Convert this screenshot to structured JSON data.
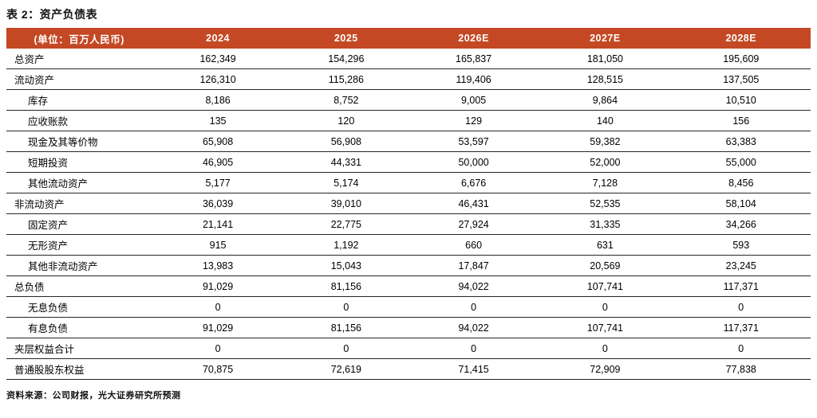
{
  "title": "表 2：资产负债表",
  "table": {
    "unit_label": "(单位：百万人民币)",
    "columns": [
      "2024",
      "2025",
      "2026E",
      "2027E",
      "2028E"
    ],
    "rows": [
      {
        "label": "总资产",
        "indent": 0,
        "values": [
          "162,349",
          "154,296",
          "165,837",
          "181,050",
          "195,609"
        ]
      },
      {
        "label": "流动资产",
        "indent": 0,
        "values": [
          "126,310",
          "115,286",
          "119,406",
          "128,515",
          "137,505"
        ]
      },
      {
        "label": "库存",
        "indent": 1,
        "values": [
          "8,186",
          "8,752",
          "9,005",
          "9,864",
          "10,510"
        ]
      },
      {
        "label": "应收账款",
        "indent": 1,
        "values": [
          "135",
          "120",
          "129",
          "140",
          "156"
        ]
      },
      {
        "label": "现金及其等价物",
        "indent": 1,
        "values": [
          "65,908",
          "56,908",
          "53,597",
          "59,382",
          "63,383"
        ]
      },
      {
        "label": "短期投资",
        "indent": 1,
        "values": [
          "46,905",
          "44,331",
          "50,000",
          "52,000",
          "55,000"
        ]
      },
      {
        "label": "其他流动资产",
        "indent": 1,
        "values": [
          "5,177",
          "5,174",
          "6,676",
          "7,128",
          "8,456"
        ]
      },
      {
        "label": "非流动资产",
        "indent": 0,
        "values": [
          "36,039",
          "39,010",
          "46,431",
          "52,535",
          "58,104"
        ]
      },
      {
        "label": "固定资产",
        "indent": 1,
        "values": [
          "21,141",
          "22,775",
          "27,924",
          "31,335",
          "34,266"
        ]
      },
      {
        "label": "无形资产",
        "indent": 1,
        "values": [
          "915",
          "1,192",
          "660",
          "631",
          "593"
        ]
      },
      {
        "label": "其他非流动资产",
        "indent": 1,
        "values": [
          "13,983",
          "15,043",
          "17,847",
          "20,569",
          "23,245"
        ]
      },
      {
        "label": "总负债",
        "indent": 0,
        "values": [
          "91,029",
          "81,156",
          "94,022",
          "107,741",
          "117,371"
        ]
      },
      {
        "label": "无息负债",
        "indent": 1,
        "values": [
          "0",
          "0",
          "0",
          "0",
          "0"
        ]
      },
      {
        "label": "有息负债",
        "indent": 1,
        "values": [
          "91,029",
          "81,156",
          "94,022",
          "107,741",
          "117,371"
        ]
      },
      {
        "label": "夹层权益合计",
        "indent": 0,
        "values": [
          "0",
          "0",
          "0",
          "0",
          "0"
        ]
      },
      {
        "label": "普通股股东权益",
        "indent": 0,
        "values": [
          "70,875",
          "72,619",
          "71,415",
          "72,909",
          "77,838"
        ]
      }
    ]
  },
  "source": "资料来源：公司财报，光大证券研究所预测",
  "colors": {
    "header_bg": "#C34823",
    "header_text": "#FFFFFF",
    "row_line": "#262626"
  }
}
